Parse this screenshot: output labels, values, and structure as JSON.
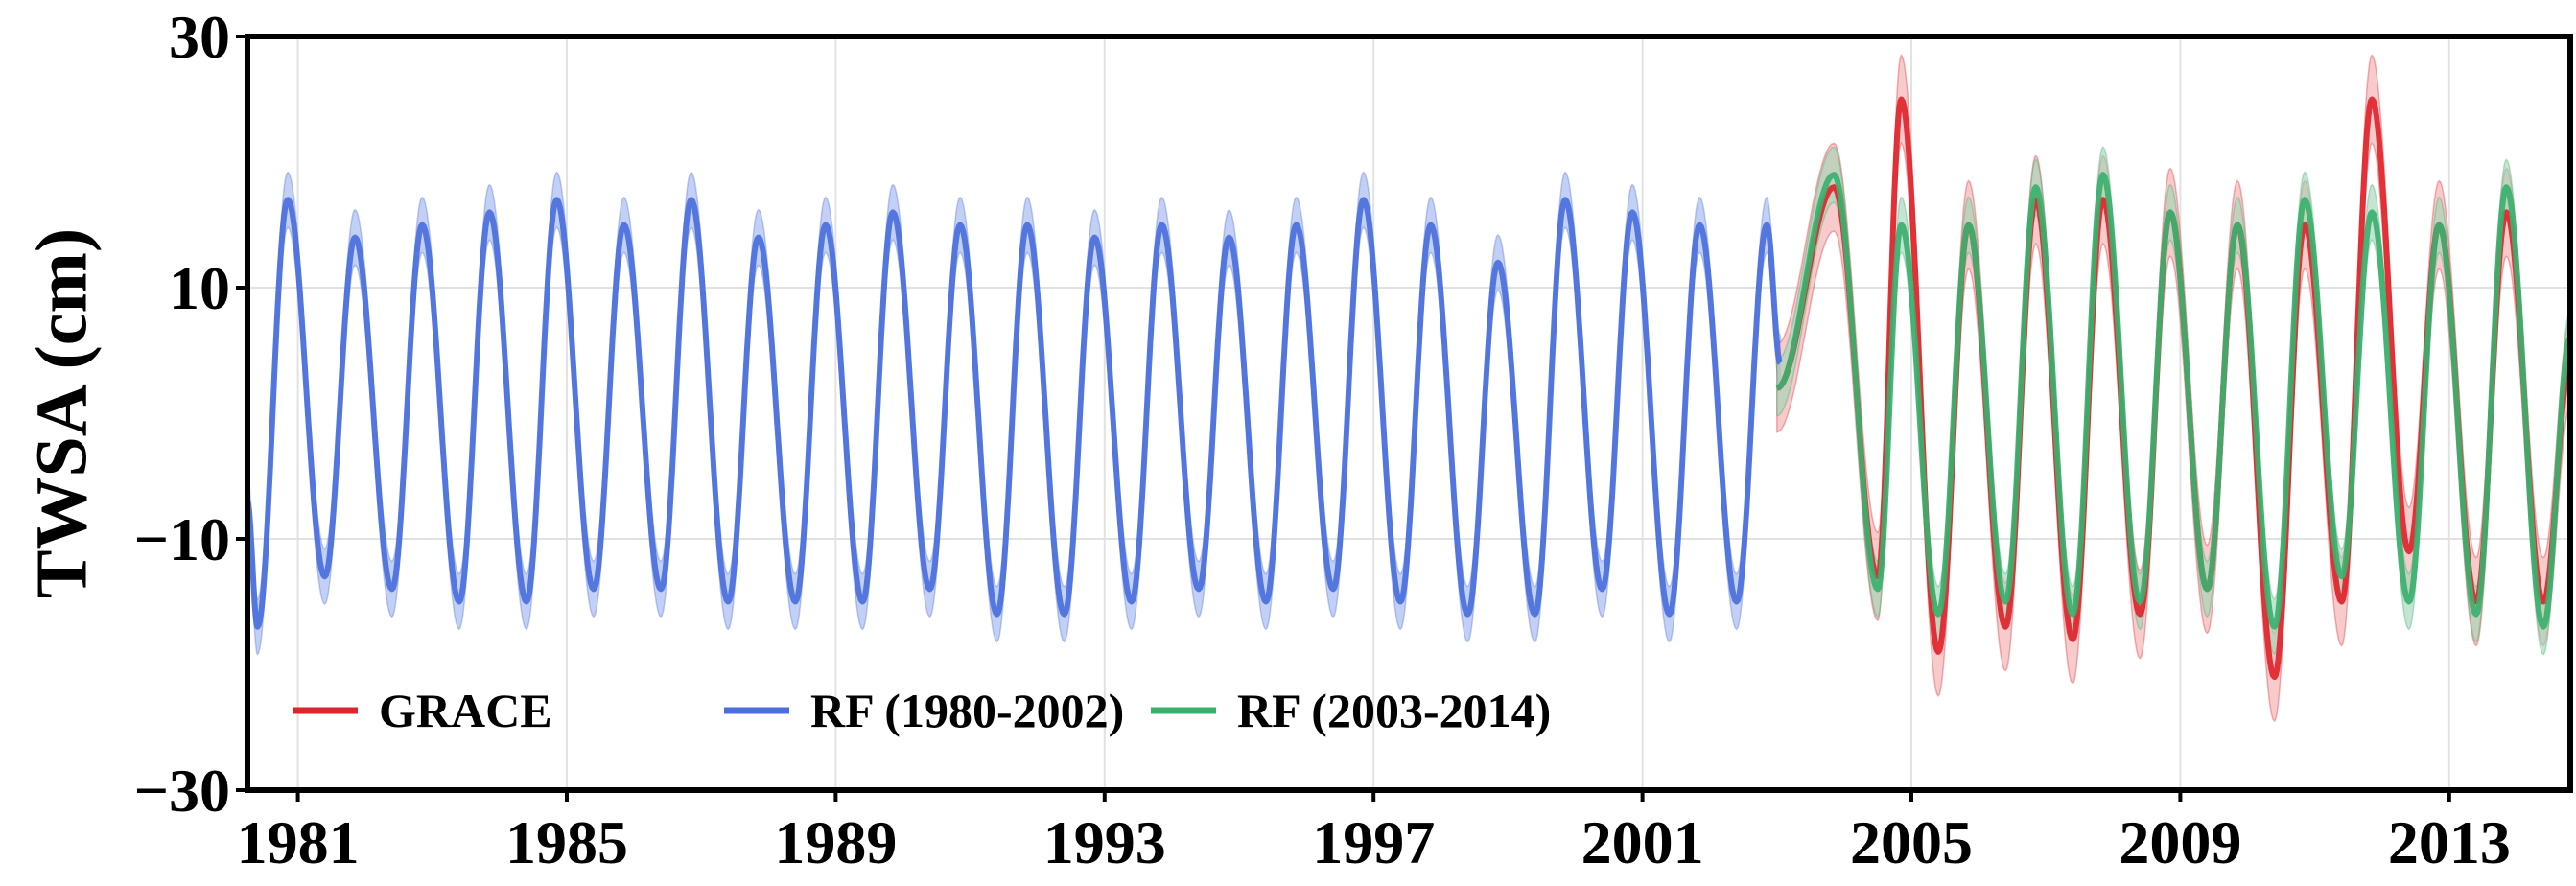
{
  "chart_data": {
    "type": "line",
    "title": "",
    "xlabel": "",
    "ylabel": "TWSA (cm)",
    "xlim": [
      1980.25,
      2014.8
    ],
    "ylim": [
      -30,
      30
    ],
    "x_ticks": [
      1981,
      1985,
      1989,
      1993,
      1997,
      2001,
      2005,
      2009,
      2013
    ],
    "x_tick_labels": [
      "1981",
      "1985",
      "1989",
      "1993",
      "1997",
      "2001",
      "2005",
      "2009",
      "2013"
    ],
    "y_ticks": [
      -30,
      -10,
      10,
      30
    ],
    "y_tick_labels": [
      "−30",
      "−10",
      "10",
      "30"
    ],
    "grid": true,
    "legend_position": "bottom-left",
    "legend": [
      {
        "label": "GRACE",
        "color": "#e0242b"
      },
      {
        "label": "RF (1980-2002)",
        "color": "#4a6fdc"
      },
      {
        "label": "RF (2003-2014)",
        "color": "#3ab06e"
      }
    ],
    "series": [
      {
        "name": "GRACE",
        "color": "#e0242b",
        "band_color": "#f2a6a8",
        "uncertainty": 3.5,
        "x": [
          2003.0,
          2003.85,
          2004.5,
          2004.85,
          2005.4,
          2005.85,
          2006.4,
          2006.85,
          2007.4,
          2007.85,
          2008.4,
          2008.85,
          2009.4,
          2009.85,
          2010.4,
          2010.85,
          2011.4,
          2011.85,
          2012.4,
          2012.85,
          2013.4,
          2013.85,
          2014.4,
          2014.8
        ],
        "y": [
          2,
          18,
          -13,
          25,
          -19,
          15,
          -17,
          17,
          -18,
          17,
          -16,
          16,
          -14,
          15,
          -21,
          15,
          -15,
          25,
          -11,
          15,
          -15,
          16,
          -15,
          4
        ]
      },
      {
        "name": "RF (1980-2002)",
        "color": "#4a6fdc",
        "band_color": "#9bb0ee",
        "uncertainty": 2.2,
        "x": [
          1980.25,
          1980.4,
          1980.85,
          1981.4,
          1981.85,
          1982.4,
          1982.85,
          1983.4,
          1983.85,
          1984.4,
          1984.85,
          1985.4,
          1985.85,
          1986.4,
          1986.85,
          1987.4,
          1987.85,
          1988.4,
          1988.85,
          1989.4,
          1989.85,
          1990.4,
          1990.85,
          1991.4,
          1991.85,
          1992.4,
          1992.85,
          1993.4,
          1993.85,
          1994.4,
          1994.85,
          1995.4,
          1995.85,
          1996.4,
          1996.85,
          1997.4,
          1997.85,
          1998.4,
          1998.85,
          1999.4,
          1999.85,
          2000.4,
          2000.85,
          2001.4,
          2001.85,
          2002.4,
          2002.85,
          2003.05
        ],
        "y": [
          -7,
          -17,
          17,
          -13,
          14,
          -14,
          15,
          -15,
          16,
          -15,
          17,
          -14,
          15,
          -14,
          17,
          -15,
          14,
          -15,
          15,
          -15,
          16,
          -14,
          15,
          -16,
          15,
          -16,
          14,
          -15,
          15,
          -14,
          14,
          -15,
          15,
          -14,
          17,
          -15,
          15,
          -16,
          12,
          -16,
          17,
          -14,
          16,
          -16,
          15,
          -15,
          15,
          4
        ]
      },
      {
        "name": "RF (2003-2014)",
        "color": "#3ab06e",
        "band_color": "#9ed4b6",
        "uncertainty": 2.2,
        "x": [
          2003.0,
          2003.85,
          2004.5,
          2004.85,
          2005.4,
          2005.85,
          2006.4,
          2006.85,
          2007.4,
          2007.85,
          2008.4,
          2008.85,
          2009.4,
          2009.85,
          2010.4,
          2010.85,
          2011.4,
          2011.85,
          2012.4,
          2012.85,
          2013.4,
          2013.85,
          2014.4,
          2014.8
        ],
        "y": [
          2,
          19,
          -14,
          15,
          -16,
          15,
          -15,
          18,
          -16,
          19,
          -15,
          16,
          -14,
          15,
          -17,
          17,
          -13,
          16,
          -15,
          15,
          -16,
          18,
          -17,
          6
        ]
      }
    ]
  }
}
